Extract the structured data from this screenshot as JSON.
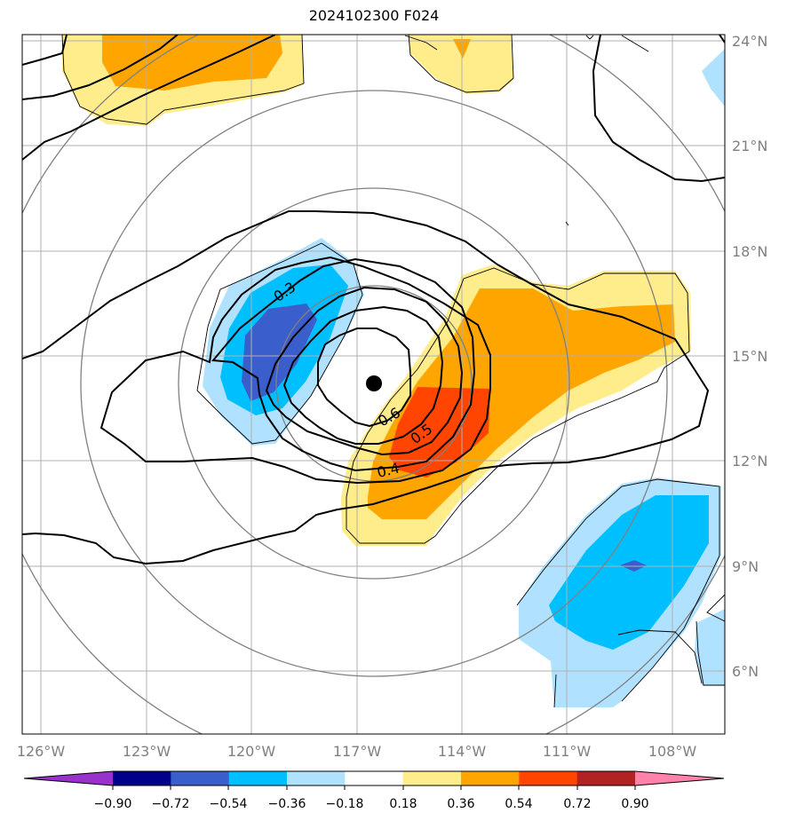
{
  "chart_data": {
    "type": "contour-map",
    "title": "2024102300 F024",
    "x_axis": {
      "ticks": [
        "126°W",
        "123°W",
        "120°W",
        "117°W",
        "114°W",
        "111°W",
        "108°W"
      ]
    },
    "y_axis": {
      "ticks": [
        "24°N",
        "21°N",
        "18°N",
        "15°N",
        "12°N",
        "9°N",
        "6°N"
      ]
    },
    "contour_labels": [
      "0.3",
      "0.6",
      "0.5",
      "0.4"
    ],
    "center_marker": {
      "lon": "116.5°W",
      "lat": "14.2°N"
    },
    "colorbar": {
      "tick_labels": [
        "−0.90",
        "−0.72",
        "−0.54",
        "−0.36",
        "−0.18",
        "0.18",
        "0.36",
        "0.54",
        "0.72",
        "0.90"
      ],
      "colors": [
        "#9932CC",
        "#00008B",
        "#3A5FCD",
        "#00BFFF",
        "#B0E2FF",
        "#FFFFFF",
        "#FFEC8B",
        "#FFA500",
        "#FF4500",
        "#B22222",
        "#FF82AB"
      ]
    },
    "grid": true
  }
}
